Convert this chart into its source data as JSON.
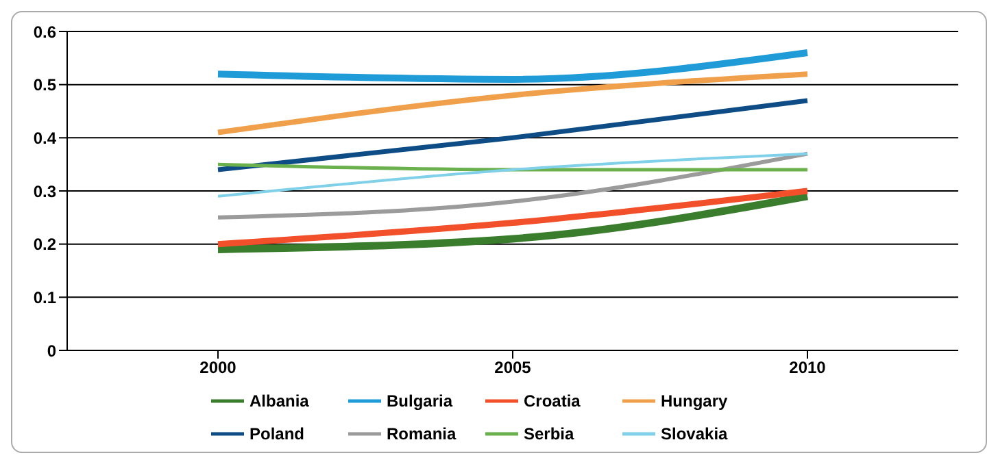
{
  "chart_data": {
    "type": "line",
    "categories": [
      "2000",
      "2005",
      "2010"
    ],
    "series": [
      {
        "name": "Albania",
        "color": "#3a7d2c",
        "values": [
          0.19,
          0.21,
          0.29
        ]
      },
      {
        "name": "Bulgaria",
        "color": "#1f9bd7",
        "values": [
          0.52,
          0.51,
          0.56
        ]
      },
      {
        "name": "Croatia",
        "color": "#f2502a",
        "values": [
          0.2,
          0.24,
          0.3
        ]
      },
      {
        "name": "Hungary",
        "color": "#f0a04b",
        "values": [
          0.41,
          0.48,
          0.52
        ]
      },
      {
        "name": "Poland",
        "color": "#0e4c86",
        "values": [
          0.34,
          0.4,
          0.47
        ]
      },
      {
        "name": "Romania",
        "color": "#9b9b9b",
        "values": [
          0.25,
          0.28,
          0.37
        ]
      },
      {
        "name": "Serbia",
        "color": "#6ab04c",
        "values": [
          0.35,
          0.34,
          0.34
        ]
      },
      {
        "name": "Slovakia",
        "color": "#7fd0e8",
        "values": [
          0.29,
          0.34,
          0.37
        ]
      }
    ],
    "ylim": [
      0,
      0.6
    ],
    "yticks": [
      0,
      0.1,
      0.2,
      0.3,
      0.4,
      0.5,
      0.6
    ],
    "grid": "y",
    "legend": "bottom",
    "marker": "none",
    "line_style": "solid"
  }
}
